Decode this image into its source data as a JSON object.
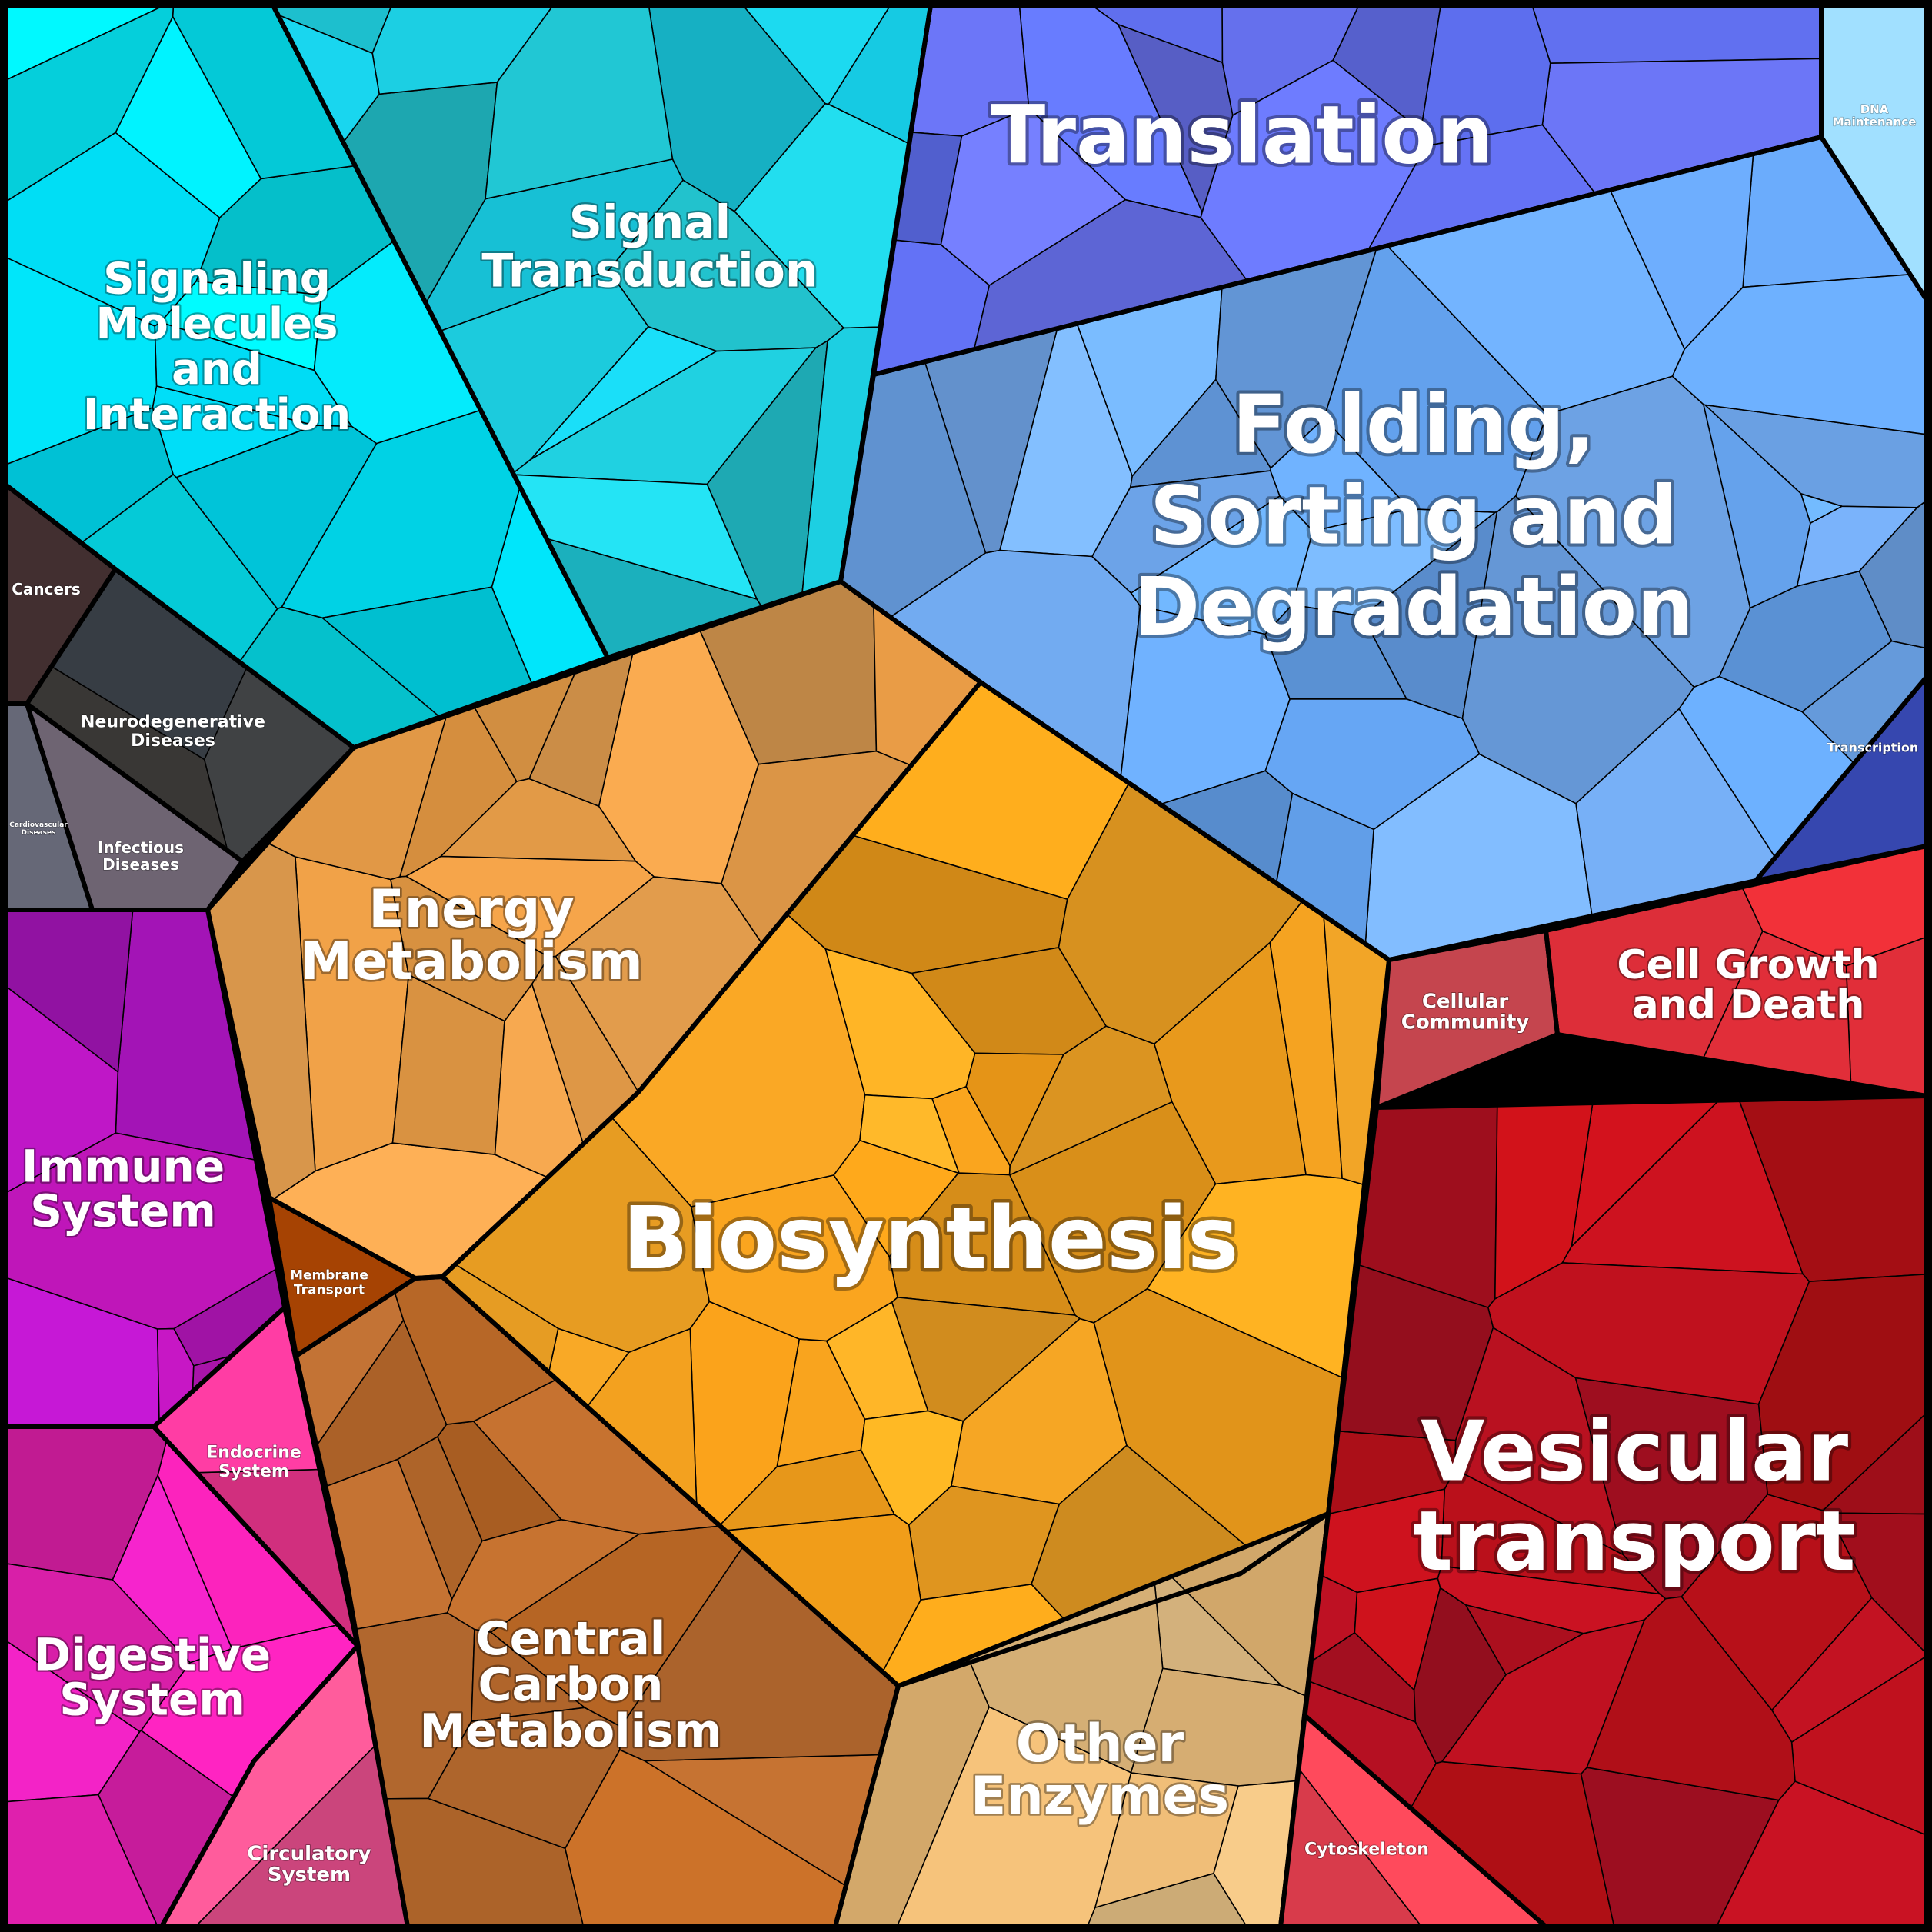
{
  "diagram": {
    "type": "voronoi-treemap",
    "background": "#000000",
    "regions": [
      {
        "id": "biosynthesis",
        "label": [
          "Biosynthesis"
        ],
        "color": "#F0A020"
      },
      {
        "id": "energy",
        "label": [
          "Energy",
          "Metabolism"
        ],
        "color": "#E39C4B"
      },
      {
        "id": "central-carbon",
        "label": [
          "Central",
          "Carbon",
          "Metabolism"
        ],
        "color": "#B0652A"
      },
      {
        "id": "other-enzymes",
        "label": [
          "Other",
          "Enzymes"
        ],
        "color": "#E9BE7E"
      },
      {
        "id": "membrane-transport",
        "label": [
          "Membrane",
          "Transport"
        ],
        "color": "#8A3A08"
      },
      {
        "id": "signal-transduction",
        "label": [
          "Signal",
          "Transduction"
        ],
        "color": "#1CC6D8"
      },
      {
        "id": "signaling-molecules",
        "label": [
          "Signaling",
          "Molecules",
          "and",
          "Interaction"
        ],
        "color": "#00E2F5"
      },
      {
        "id": "translation",
        "label": [
          "Translation"
        ],
        "color": "#6470EE"
      },
      {
        "id": "folding",
        "label": [
          "Folding,",
          "Sorting and",
          "Degradation"
        ],
        "color": "#6CA6EE"
      },
      {
        "id": "dna-maintenance",
        "label": [
          "DNA",
          "Maintenance"
        ],
        "color": "#8CCBF5"
      },
      {
        "id": "transcription",
        "label": [
          "Transcription"
        ],
        "color": "#3E4FC0"
      },
      {
        "id": "vesicular",
        "label": [
          "Vesicular",
          "transport"
        ],
        "color": "#B5101C"
      },
      {
        "id": "cell-growth",
        "label": [
          "Cell Growth",
          "and Death"
        ],
        "color": "#E8303C"
      },
      {
        "id": "cellular-community",
        "label": [
          "Cellular",
          "Community"
        ],
        "color": "#F05256"
      },
      {
        "id": "cytoskeleton",
        "label": [
          "Cytoskeleton"
        ],
        "color": "#F0404E"
      },
      {
        "id": "immune",
        "label": [
          "Immune",
          "System"
        ],
        "color": "#B015B8"
      },
      {
        "id": "digestive",
        "label": [
          "Digestive",
          "System"
        ],
        "color": "#E020B0"
      },
      {
        "id": "endocrine",
        "label": [
          "Endocrine",
          "System"
        ],
        "color": "#E83590"
      },
      {
        "id": "circulatory",
        "label": [
          "Circulatory",
          "System"
        ],
        "color": "#F0508A"
      },
      {
        "id": "cancers",
        "label": [
          "Cancers"
        ],
        "color": "#3D2C2E"
      },
      {
        "id": "neurodegenerative",
        "label": [
          "Neurodegenerative",
          "Diseases"
        ],
        "color": "#3A3A3A"
      },
      {
        "id": "infectious",
        "label": [
          "Infectious",
          "Diseases"
        ],
        "color": "#6E626C"
      },
      {
        "id": "cardiovascular",
        "label": [
          "Cardiovascular",
          "Diseases"
        ],
        "color": "#76727C"
      }
    ]
  }
}
